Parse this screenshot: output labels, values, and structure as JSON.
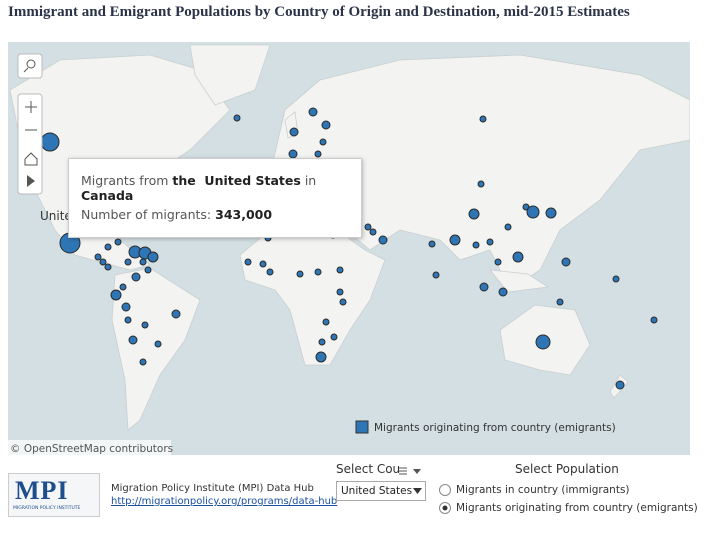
{
  "header": {
    "title": "Immigrant and Emigrant Populations by Country of Origin and Destination, mid-2015 Estimates"
  },
  "map": {
    "attribution": "© OpenStreetMap contributors",
    "place_label": "Unite",
    "tooltip": {
      "prefix": "Migrants from",
      "origin": "the  United States",
      "joiner": "in",
      "destination": "Canada",
      "count_label": "Number of migrants:",
      "count": "343,000"
    },
    "legend": "Migrants originating from country (emigrants)"
  },
  "footer": {
    "logo_text": "MPI",
    "logo_subtext": "MIGRATION POLICY INSTITUTE",
    "source": "Migration Policy Institute (MPI) Data Hub",
    "url": "http://migrationpolicy.org/programs/data-hub",
    "country_select": {
      "label": "Select Cou",
      "value": "United States"
    },
    "population_select": {
      "label": "Select Population",
      "options": [
        "Migrants in country (immigrants)",
        "Migrants originating from country (emigrants)"
      ]
    }
  }
}
